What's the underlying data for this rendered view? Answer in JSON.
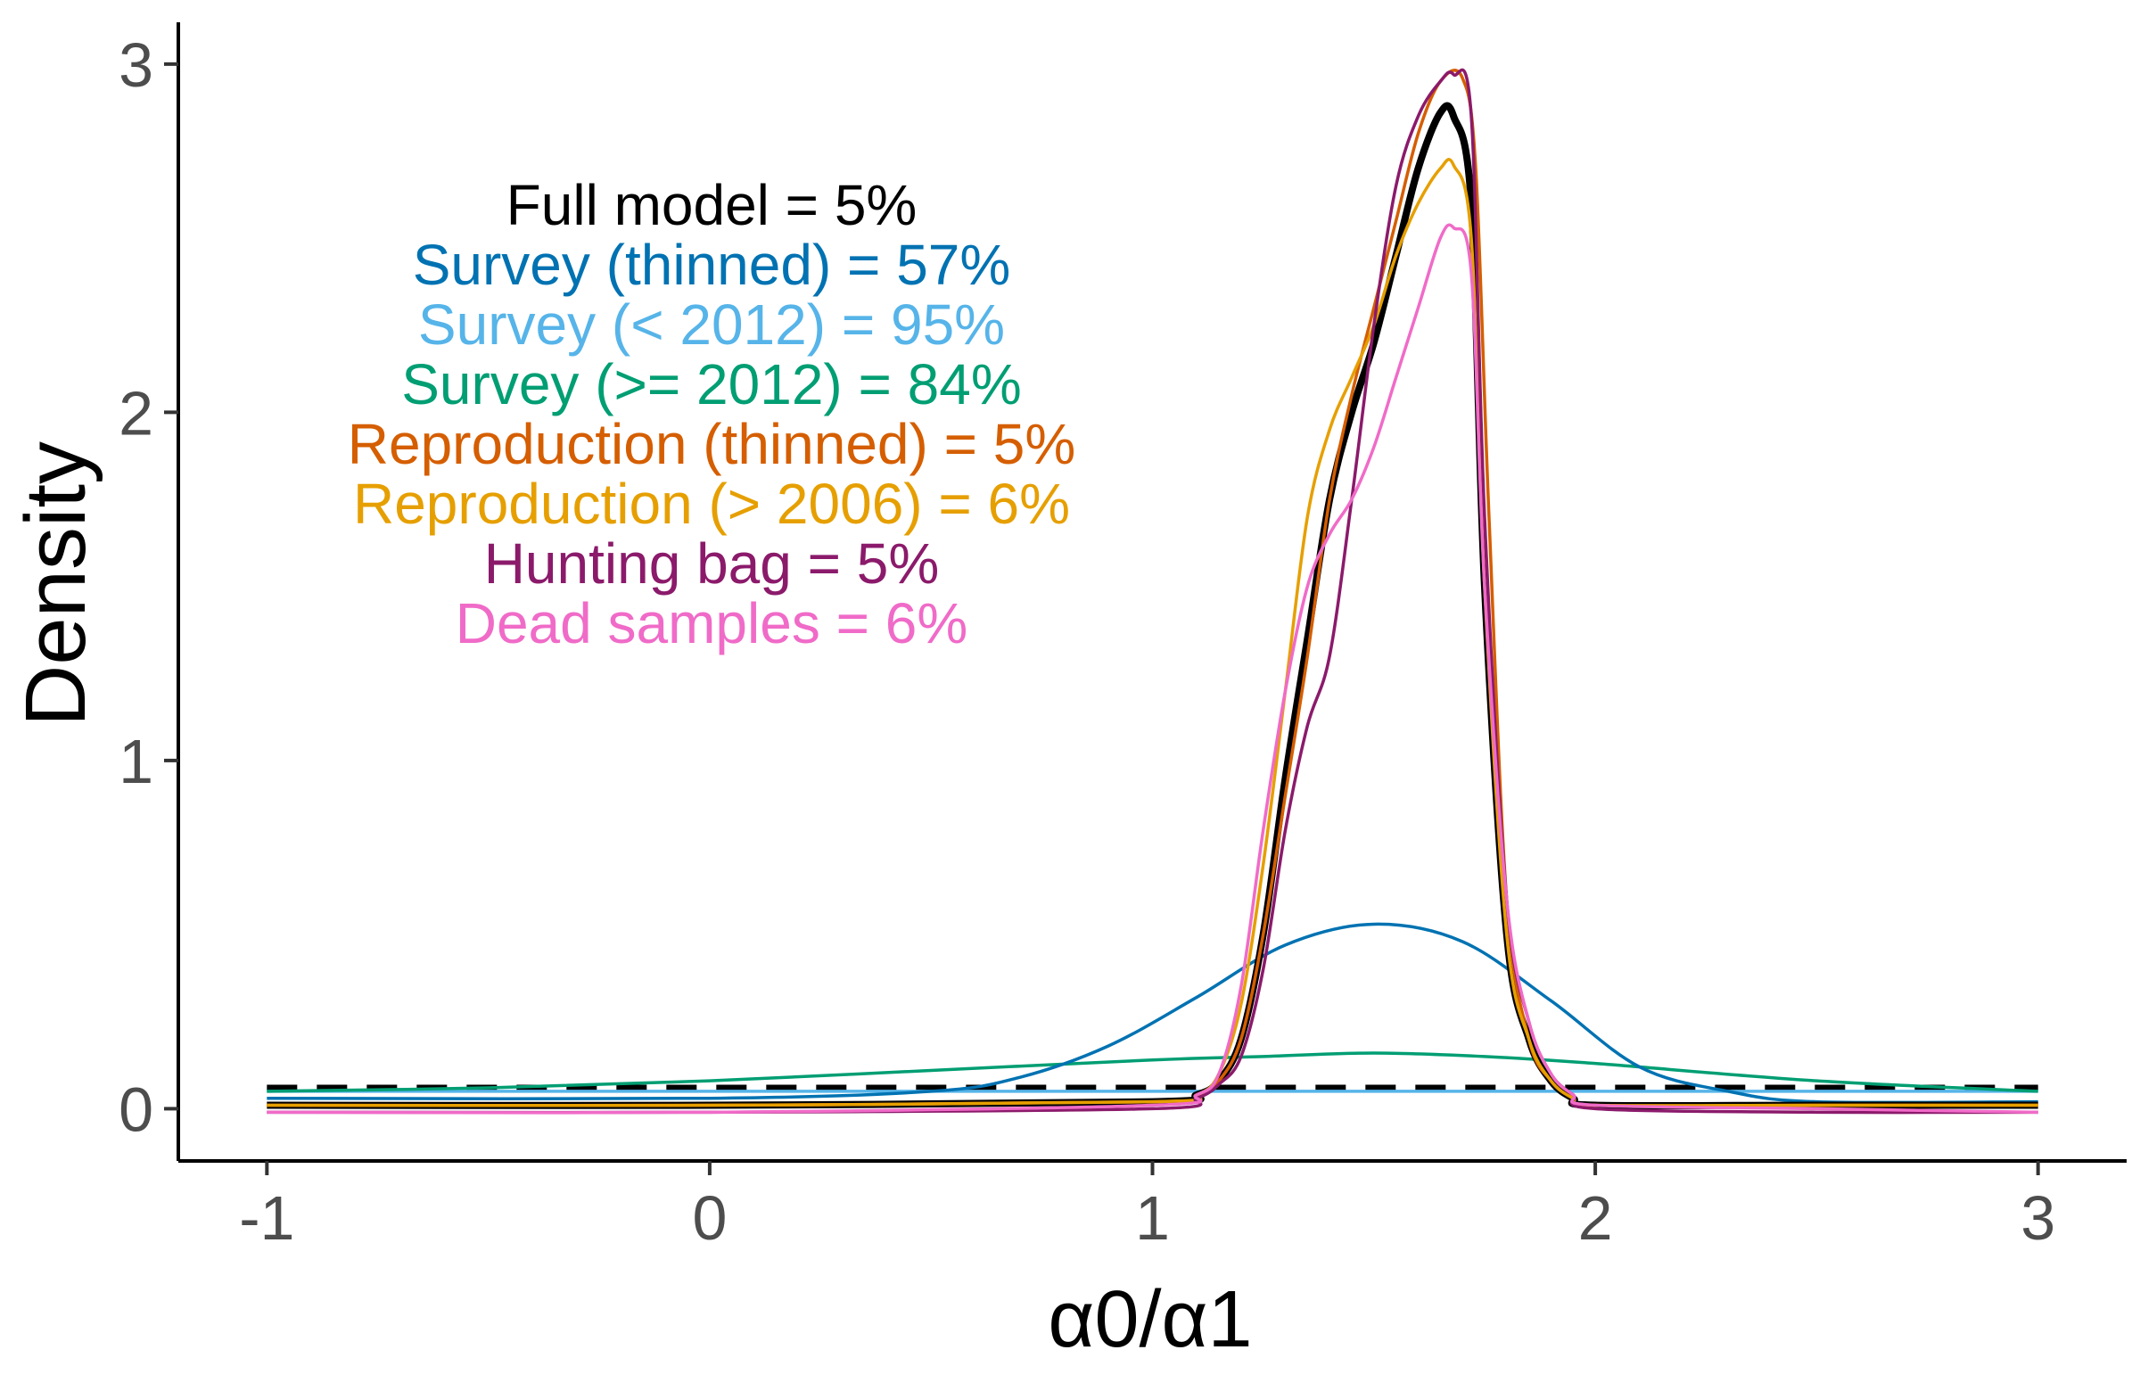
{
  "chart_data": {
    "type": "line",
    "title": "",
    "xlabel": "α0/α1",
    "ylabel": "Density",
    "xlim": [
      -1.2,
      3.2
    ],
    "ylim": [
      -0.15,
      3.12
    ],
    "x_ticks": [
      "-1",
      "0",
      "1",
      "2",
      "3"
    ],
    "y_ticks": [
      "0",
      "1",
      "2",
      "3"
    ],
    "grid": false,
    "legend_placement": "top-left",
    "annotations": [
      {
        "text": "Full model = 5%",
        "color": "#000000"
      },
      {
        "text": "Survey (thinned) = 57%",
        "color": "#0072B2"
      },
      {
        "text": "Survey (< 2012) = 95%",
        "color": "#56B4E9"
      },
      {
        "text": "Survey (>= 2012) = 84%",
        "color": "#009E73"
      },
      {
        "text": "Reproduction (thinned) = 5%",
        "color": "#D55E00"
      },
      {
        "text": "Reproduction (> 2006) = 6%",
        "color": "#E69F00"
      },
      {
        "text": "Hunting bag = 5%",
        "color": "#8B1A6B"
      },
      {
        "text": "Dead samples = 6%",
        "color": "#F06BC8"
      }
    ],
    "series": [
      {
        "key": "prior",
        "color": "#000000",
        "style": "dashed",
        "x": [
          -1,
          3
        ],
        "y": [
          0.06,
          0.06
        ]
      },
      {
        "key": "survey_lt2012",
        "color": "#56B4E9",
        "style": "solid",
        "x": [
          -1,
          3
        ],
        "y": [
          0.05,
          0.05
        ]
      },
      {
        "key": "survey_ge2012",
        "color": "#009E73",
        "style": "solid",
        "x": [
          -1,
          -0.5,
          0,
          0.5,
          1,
          1.25,
          1.5,
          1.75,
          2,
          2.5,
          3
        ],
        "y": [
          0.05,
          0.06,
          0.08,
          0.11,
          0.14,
          0.15,
          0.16,
          0.15,
          0.13,
          0.08,
          0.05
        ]
      },
      {
        "key": "survey_thinned",
        "color": "#0072B2",
        "style": "solid",
        "x": [
          -1,
          0,
          0.5,
          0.7,
          0.9,
          1.1,
          1.3,
          1.5,
          1.7,
          1.9,
          2.1,
          2.3,
          2.5,
          3
        ],
        "y": [
          0.03,
          0.03,
          0.05,
          0.09,
          0.18,
          0.32,
          0.47,
          0.53,
          0.48,
          0.31,
          0.12,
          0.05,
          0.02,
          0.02
        ]
      },
      {
        "key": "full_model",
        "color": "#000000",
        "style": "thick",
        "x": [
          -1,
          0,
          1,
          1.1,
          1.15,
          1.2,
          1.25,
          1.3,
          1.35,
          1.4,
          1.45,
          1.5,
          1.55,
          1.6,
          1.65,
          1.68,
          1.72,
          1.75,
          1.8,
          1.85,
          1.9,
          1.95,
          2,
          2.5,
          3
        ],
        "y": [
          0.01,
          0.01,
          0.02,
          0.04,
          0.08,
          0.2,
          0.5,
          0.95,
          1.35,
          1.75,
          2.0,
          2.2,
          2.45,
          2.7,
          2.86,
          2.85,
          2.6,
          1.5,
          0.5,
          0.2,
          0.08,
          0.03,
          0.01,
          0.01,
          0.01
        ]
      },
      {
        "key": "reproduction_thinned",
        "color": "#D55E00",
        "style": "solid",
        "x": [
          -1,
          0,
          1,
          1.1,
          1.15,
          1.2,
          1.25,
          1.3,
          1.35,
          1.4,
          1.45,
          1.5,
          1.55,
          1.6,
          1.65,
          1.7,
          1.73,
          1.76,
          1.8,
          1.85,
          1.9,
          1.95,
          2,
          2.5,
          3
        ],
        "y": [
          0.01,
          0.01,
          0.02,
          0.04,
          0.08,
          0.2,
          0.5,
          0.9,
          1.3,
          1.75,
          2.05,
          2.3,
          2.55,
          2.8,
          2.95,
          2.96,
          2.7,
          1.7,
          0.6,
          0.2,
          0.08,
          0.03,
          0.01,
          0.01,
          0.01
        ]
      },
      {
        "key": "reproduction_gt2006",
        "color": "#E69F00",
        "style": "solid",
        "x": [
          -1,
          0,
          1,
          1.1,
          1.15,
          1.2,
          1.25,
          1.3,
          1.35,
          1.4,
          1.45,
          1.5,
          1.55,
          1.6,
          1.65,
          1.68,
          1.72,
          1.75,
          1.8,
          1.85,
          1.9,
          1.95,
          2,
          2.5,
          3
        ],
        "y": [
          0.01,
          0.01,
          0.02,
          0.04,
          0.1,
          0.3,
          0.7,
          1.2,
          1.7,
          1.95,
          2.1,
          2.25,
          2.45,
          2.6,
          2.7,
          2.71,
          2.5,
          1.5,
          0.5,
          0.2,
          0.08,
          0.03,
          0.01,
          0.01,
          0.01
        ]
      },
      {
        "key": "hunting_bag",
        "color": "#8B1A6B",
        "style": "solid",
        "x": [
          -1,
          0,
          1,
          1.1,
          1.15,
          1.2,
          1.25,
          1.3,
          1.35,
          1.4,
          1.45,
          1.5,
          1.55,
          1.6,
          1.65,
          1.68,
          1.72,
          1.75,
          1.8,
          1.85,
          1.9,
          1.95,
          2,
          2.5,
          3
        ],
        "y": [
          -0.01,
          -0.01,
          0.0,
          0.03,
          0.07,
          0.15,
          0.4,
          0.8,
          1.1,
          1.3,
          1.75,
          2.25,
          2.65,
          2.85,
          2.95,
          2.97,
          2.85,
          1.7,
          0.6,
          0.25,
          0.1,
          0.04,
          0.0,
          -0.01,
          -0.01
        ]
      },
      {
        "key": "dead_samples",
        "color": "#F06BC8",
        "style": "solid",
        "x": [
          -1,
          0,
          1,
          1.1,
          1.15,
          1.2,
          1.25,
          1.3,
          1.35,
          1.4,
          1.45,
          1.5,
          1.55,
          1.6,
          1.65,
          1.68,
          1.72,
          1.75,
          1.8,
          1.85,
          1.9,
          1.95,
          2,
          2.5,
          3
        ],
        "y": [
          -0.01,
          -0.01,
          0.01,
          0.04,
          0.1,
          0.35,
          0.8,
          1.2,
          1.5,
          1.65,
          1.75,
          1.9,
          2.1,
          2.3,
          2.5,
          2.53,
          2.4,
          1.5,
          0.6,
          0.25,
          0.1,
          0.04,
          0.01,
          0.0,
          -0.01
        ]
      }
    ]
  }
}
